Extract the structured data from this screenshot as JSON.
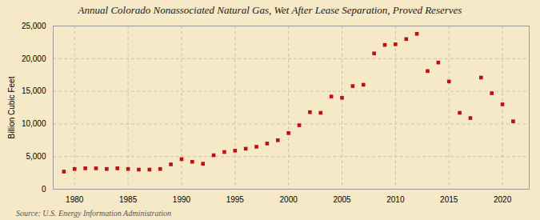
{
  "chart_data": {
    "type": "scatter",
    "title": "Annual Colorado Nonassociated Natural Gas, Wet After Lease Separation, Proved Reserves",
    "ylabel": "Billion Cubic Feet",
    "source": "Source: U.S. Energy Information Administration",
    "x": [
      1979,
      1980,
      1981,
      1982,
      1983,
      1984,
      1985,
      1986,
      1987,
      1988,
      1989,
      1990,
      1991,
      1992,
      1993,
      1994,
      1995,
      1996,
      1997,
      1998,
      1999,
      2000,
      2001,
      2002,
      2003,
      2004,
      2005,
      2006,
      2007,
      2008,
      2009,
      2010,
      2011,
      2012,
      2013,
      2014,
      2015,
      2016,
      2017,
      2018,
      2019,
      2020,
      2021
    ],
    "values": [
      2700,
      3100,
      3200,
      3200,
      3100,
      3200,
      3100,
      3000,
      3000,
      3100,
      3800,
      4600,
      4200,
      3900,
      5200,
      5700,
      5900,
      6200,
      6500,
      7000,
      7500,
      8600,
      9800,
      11800,
      11700,
      14200,
      14000,
      15800,
      16000,
      20800,
      22100,
      22200,
      23000,
      23800,
      18100,
      19400,
      16500,
      11700,
      10900,
      17100,
      14700,
      13000,
      10400
    ],
    "color": "#bb1111",
    "marker": "square",
    "xlim": [
      1978,
      2022.5
    ],
    "ylim": [
      0,
      25000
    ],
    "xticks": [
      1980,
      1985,
      1990,
      1995,
      2000,
      2005,
      2010,
      2015,
      2020
    ],
    "yticks": [
      0,
      {
        "value": 5000,
        "label": "5,000"
      },
      {
        "value": 10000,
        "label": "10,000"
      },
      {
        "value": 15000,
        "label": "15,000"
      },
      {
        "value": 20000,
        "label": "20,000"
      },
      {
        "value": 25000,
        "label": "25,000"
      }
    ],
    "grid": true
  }
}
